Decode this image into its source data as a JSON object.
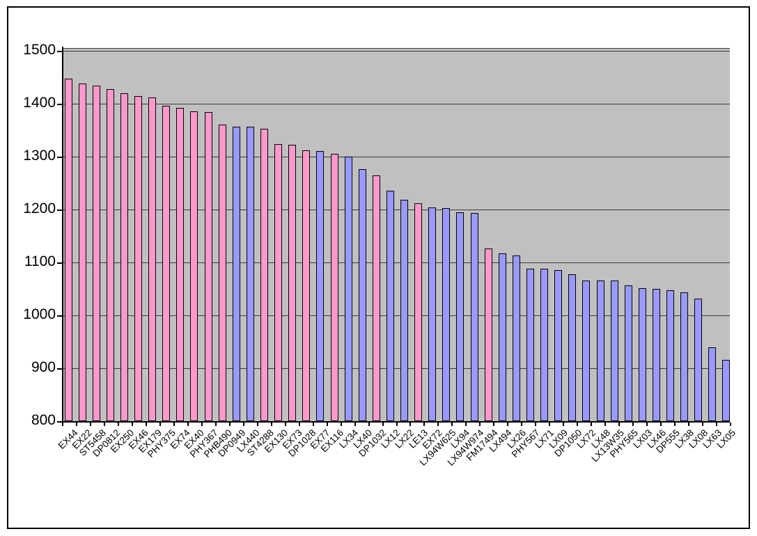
{
  "window": {
    "background": "#FFFFFF",
    "frame_border_color": "#000000"
  },
  "palette": {
    "series_pink": "#FF99CC",
    "series_blue": "#9999FF",
    "plot_background": "#C0C0C0",
    "gridline": "#3a3a3a",
    "axis": "#000000"
  },
  "chart_data": {
    "type": "bar",
    "title": "",
    "xlabel": "",
    "ylabel": "",
    "legend_position": "none",
    "grid": true,
    "ylim": [
      800,
      1500
    ],
    "yticks": [
      800,
      900,
      1000,
      1100,
      1200,
      1300,
      1400,
      1500
    ],
    "categories": [
      "EX44",
      "EX22",
      "ST5458",
      "DP0812",
      "EX250",
      "EX46",
      "EX179",
      "PHY375",
      "EX74",
      "EX40",
      "PHY367",
      "PHB490",
      "DP0949",
      "LX440",
      "ST4288",
      "EX130",
      "EX73",
      "DP1028",
      "EX77",
      "EX116",
      "LX34",
      "LX40",
      "DP1032",
      "LX12",
      "LX22",
      "LE13",
      "EX72",
      "LX94W625",
      "LX94",
      "LX94W974",
      "FM17494",
      "LX494",
      "LX26",
      "PHY567",
      "LX71",
      "LX09",
      "DP1050",
      "LX72",
      "LX48",
      "LX13W35",
      "PHY565",
      "LX03",
      "LX46",
      "DP555",
      "LX38",
      "LX08",
      "LX63",
      "LX05"
    ],
    "values": [
      1447,
      1438,
      1434,
      1428,
      1420,
      1415,
      1412,
      1396,
      1392,
      1386,
      1384,
      1361,
      1357,
      1356,
      1352,
      1324,
      1322,
      1312,
      1310,
      1305,
      1300,
      1276,
      1265,
      1235,
      1218,
      1212,
      1204,
      1203,
      1195,
      1193,
      1126,
      1117,
      1113,
      1088,
      1088,
      1085,
      1077,
      1066,
      1066,
      1066,
      1056,
      1051,
      1050,
      1047,
      1043,
      1032,
      940,
      916
    ],
    "bar_colors": [
      "#FF99CC",
      "#FF99CC",
      "#FF99CC",
      "#FF99CC",
      "#FF99CC",
      "#FF99CC",
      "#FF99CC",
      "#FF99CC",
      "#FF99CC",
      "#FF99CC",
      "#FF99CC",
      "#FF99CC",
      "#9999FF",
      "#9999FF",
      "#FF99CC",
      "#FF99CC",
      "#FF99CC",
      "#FF99CC",
      "#9999FF",
      "#FF99CC",
      "#9999FF",
      "#9999FF",
      "#FF99CC",
      "#9999FF",
      "#9999FF",
      "#FF99CC",
      "#9999FF",
      "#9999FF",
      "#9999FF",
      "#9999FF",
      "#FF99CC",
      "#9999FF",
      "#9999FF",
      "#9999FF",
      "#9999FF",
      "#9999FF",
      "#9999FF",
      "#9999FF",
      "#9999FF",
      "#9999FF",
      "#9999FF",
      "#9999FF",
      "#9999FF",
      "#9999FF",
      "#9999FF",
      "#9999FF",
      "#9999FF",
      "#9999FF"
    ]
  }
}
